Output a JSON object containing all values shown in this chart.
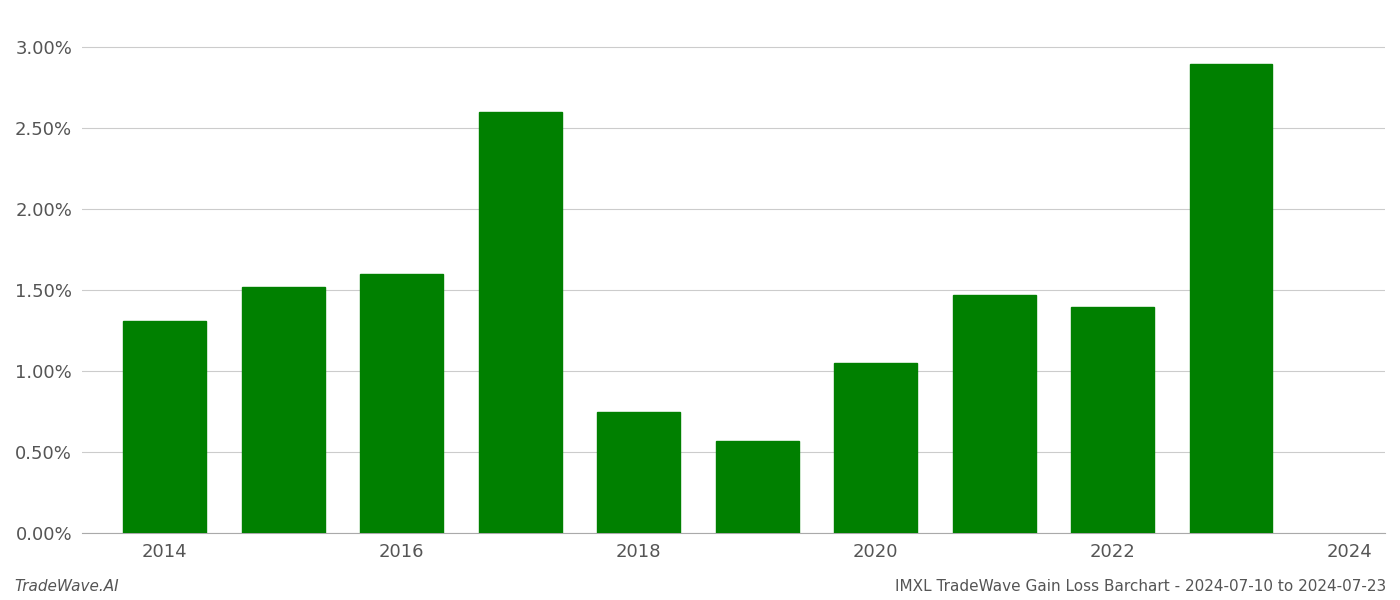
{
  "years": [
    2014,
    2015,
    2016,
    2017,
    2018,
    2019,
    2020,
    2021,
    2022,
    2023
  ],
  "values": [
    0.0131,
    0.0152,
    0.016,
    0.026,
    0.0075,
    0.0057,
    0.0105,
    0.0147,
    0.014,
    0.029
  ],
  "bar_color": "#008000",
  "title": "IMXL TradeWave Gain Loss Barchart - 2024-07-10 to 2024-07-23",
  "footer_left": "TradeWave.AI",
  "ylim": [
    0,
    0.032
  ],
  "yticks": [
    0.0,
    0.005,
    0.01,
    0.015,
    0.02,
    0.025,
    0.03
  ],
  "xticks": [
    2014,
    2016,
    2018,
    2020,
    2022,
    2024
  ],
  "xlim": [
    2013.3,
    2024.3
  ],
  "background_color": "#ffffff",
  "grid_color": "#cccccc",
  "bar_width": 0.7
}
